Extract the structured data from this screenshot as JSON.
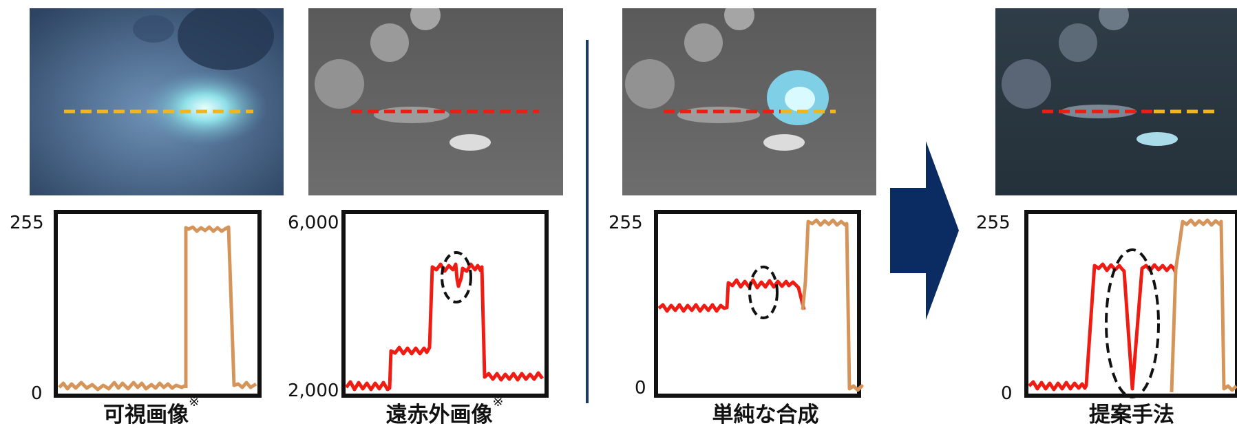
{
  "colors": {
    "visible_line": "#d5955a",
    "infrared_line": "#ee1c13",
    "axis": "#111111",
    "divider": "#1b3a6b",
    "arrow": "#0b2c63"
  },
  "panels": [
    {
      "caption": "可視画像",
      "mark": "※",
      "y_top_label": "255",
      "y_bottom_label": "0"
    },
    {
      "caption": "遠赤外画像",
      "mark": "※",
      "y_top_label": "6,000",
      "y_bottom_label": "2,000"
    },
    {
      "caption": "単純な合成",
      "mark": "",
      "y_top_label": "255",
      "y_bottom_label": "0"
    },
    {
      "caption": "提案手法",
      "mark": "",
      "y_top_label": "255",
      "y_bottom_label": "0"
    }
  ],
  "arrow_icon": "right-arrow-icon"
}
